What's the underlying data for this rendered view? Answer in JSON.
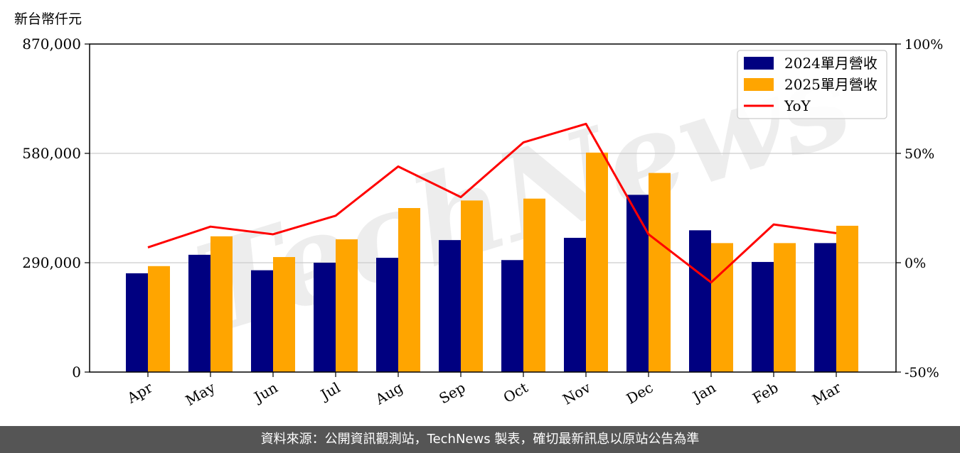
{
  "unit_label": "新台幣仟元",
  "footer_text": "資料來源：公開資訊觀測站，TechNews 製表，確切最新訊息以原站公告為準",
  "watermark_text": "TechNews",
  "colors": {
    "series_2024": "#000080",
    "series_2025": "#FFA500",
    "yoy_line": "#FF0000",
    "grid": "#cccccc",
    "footer_bg": "#555555",
    "watermark": "#e8e8e8"
  },
  "chart_data": {
    "type": "bar",
    "categories": [
      "Apr",
      "May",
      "Jun",
      "Jul",
      "Aug",
      "Sep",
      "Oct",
      "Nov",
      "Dec",
      "Jan",
      "Feb",
      "Mar"
    ],
    "series": [
      {
        "name": "2024單月營收",
        "values": [
          262000,
          311000,
          270000,
          290000,
          303000,
          350000,
          297000,
          356000,
          470000,
          376000,
          292000,
          342000
        ]
      },
      {
        "name": "2025單月營收",
        "values": [
          281000,
          360000,
          305000,
          352000,
          435000,
          455000,
          460000,
          582000,
          528000,
          342000,
          342000,
          388000
        ]
      }
    ],
    "line_series": {
      "name": "YoY",
      "axis": "right",
      "values": [
        7.0,
        16.5,
        13.0,
        21.5,
        44.0,
        30.0,
        55.0,
        63.5,
        13.0,
        -9.0,
        17.5,
        13.5
      ]
    },
    "left_axis": {
      "label": "新台幣仟元",
      "ylim": [
        0,
        870000
      ],
      "ticks": [
        "0",
        "290,000",
        "580,000",
        "870,000"
      ]
    },
    "right_axis": {
      "ylim": [
        -50,
        100
      ],
      "ticks": [
        "-50%",
        "0%",
        "50%",
        "100%"
      ]
    },
    "legend": {
      "placement": "top-right",
      "entries": [
        "2024單月營收",
        "2025單月營收",
        "YoY"
      ]
    },
    "grid": true
  }
}
